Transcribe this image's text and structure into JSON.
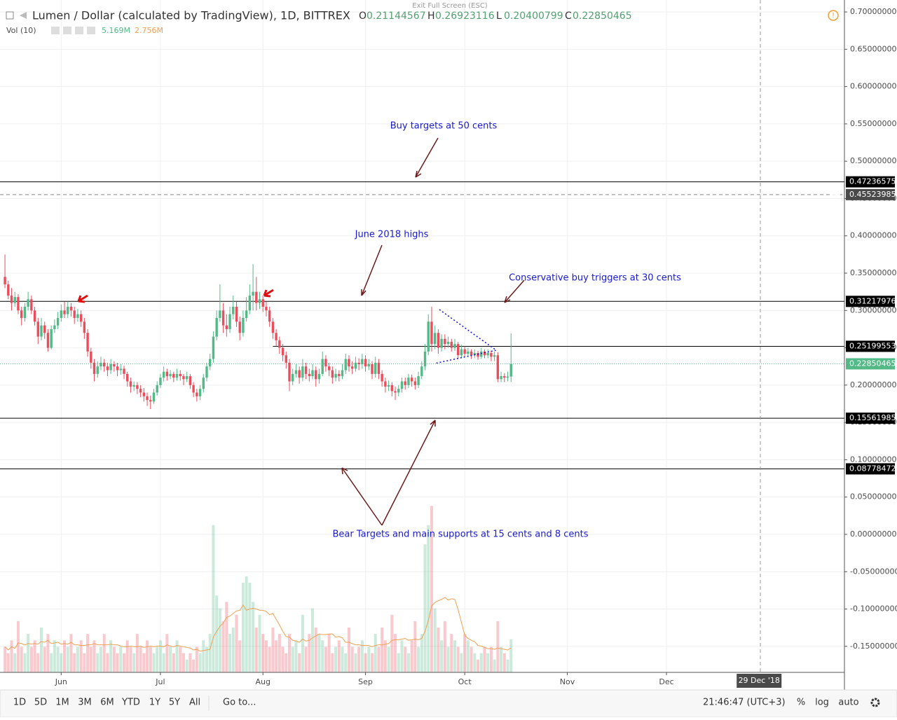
{
  "chart_data": {
    "type": "candlestick",
    "title": "Lumen / Dollar (calculated by TradingView), 1D, BITTREX",
    "ohlc_names": [
      "O",
      "H",
      "L",
      "C"
    ],
    "volume_title": "Vol (10)",
    "volume_label": "5.169M",
    "volume_ma_label": "2.756M",
    "up_color": "#53b987",
    "down_color": "#eb4d5c",
    "volume_ma_color": "#f0a050",
    "candles": [
      [
        0.345,
        0.375,
        0.33,
        0.335
      ],
      [
        0.335,
        0.34,
        0.315,
        0.32
      ],
      [
        0.32,
        0.33,
        0.3,
        0.31
      ],
      [
        0.31,
        0.325,
        0.305,
        0.318
      ],
      [
        0.318,
        0.322,
        0.295,
        0.3
      ],
      [
        0.3,
        0.305,
        0.28,
        0.29
      ],
      [
        0.29,
        0.31,
        0.285,
        0.305
      ],
      [
        0.305,
        0.325,
        0.3,
        0.315
      ],
      [
        0.315,
        0.32,
        0.295,
        0.3
      ],
      [
        0.3,
        0.305,
        0.28,
        0.285
      ],
      [
        0.285,
        0.29,
        0.255,
        0.265
      ],
      [
        0.265,
        0.29,
        0.26,
        0.28
      ],
      [
        0.28,
        0.285,
        0.262,
        0.27
      ],
      [
        0.27,
        0.275,
        0.245,
        0.25
      ],
      [
        0.25,
        0.28,
        0.248,
        0.275
      ],
      [
        0.275,
        0.288,
        0.27,
        0.28
      ],
      [
        0.28,
        0.298,
        0.275,
        0.29
      ],
      [
        0.29,
        0.308,
        0.285,
        0.3
      ],
      [
        0.3,
        0.312,
        0.29,
        0.295
      ],
      [
        0.295,
        0.312,
        0.29,
        0.305
      ],
      [
        0.305,
        0.31,
        0.292,
        0.3
      ],
      [
        0.3,
        0.305,
        0.282,
        0.29
      ],
      [
        0.29,
        0.302,
        0.285,
        0.295
      ],
      [
        0.295,
        0.3,
        0.278,
        0.285
      ],
      [
        0.285,
        0.29,
        0.262,
        0.27
      ],
      [
        0.27,
        0.275,
        0.238,
        0.245
      ],
      [
        0.245,
        0.25,
        0.222,
        0.23
      ],
      [
        0.23,
        0.235,
        0.205,
        0.215
      ],
      [
        0.215,
        0.232,
        0.21,
        0.225
      ],
      [
        0.225,
        0.238,
        0.22,
        0.23
      ],
      [
        0.23,
        0.235,
        0.218,
        0.225
      ],
      [
        0.225,
        0.23,
        0.212,
        0.22
      ],
      [
        0.22,
        0.235,
        0.215,
        0.228
      ],
      [
        0.228,
        0.232,
        0.218,
        0.225
      ],
      [
        0.225,
        0.23,
        0.212,
        0.22
      ],
      [
        0.22,
        0.228,
        0.214,
        0.222
      ],
      [
        0.222,
        0.226,
        0.208,
        0.215
      ],
      [
        0.215,
        0.218,
        0.198,
        0.205
      ],
      [
        0.205,
        0.21,
        0.19,
        0.198
      ],
      [
        0.198,
        0.205,
        0.192,
        0.2
      ],
      [
        0.2,
        0.204,
        0.188,
        0.195
      ],
      [
        0.195,
        0.2,
        0.184,
        0.19
      ],
      [
        0.19,
        0.196,
        0.178,
        0.185
      ],
      [
        0.185,
        0.19,
        0.172,
        0.18
      ],
      [
        0.18,
        0.186,
        0.168,
        0.178
      ],
      [
        0.178,
        0.195,
        0.175,
        0.19
      ],
      [
        0.19,
        0.205,
        0.186,
        0.2
      ],
      [
        0.2,
        0.215,
        0.196,
        0.21
      ],
      [
        0.21,
        0.225,
        0.205,
        0.218
      ],
      [
        0.218,
        0.222,
        0.206,
        0.212
      ],
      [
        0.212,
        0.22,
        0.208,
        0.215
      ],
      [
        0.215,
        0.218,
        0.204,
        0.21
      ],
      [
        0.21,
        0.222,
        0.206,
        0.215
      ],
      [
        0.215,
        0.22,
        0.206,
        0.212
      ],
      [
        0.212,
        0.215,
        0.2,
        0.208
      ],
      [
        0.208,
        0.218,
        0.204,
        0.212
      ],
      [
        0.212,
        0.215,
        0.195,
        0.2
      ],
      [
        0.2,
        0.204,
        0.184,
        0.19
      ],
      [
        0.19,
        0.195,
        0.178,
        0.185
      ],
      [
        0.185,
        0.2,
        0.18,
        0.195
      ],
      [
        0.195,
        0.215,
        0.19,
        0.21
      ],
      [
        0.21,
        0.23,
        0.205,
        0.225
      ],
      [
        0.225,
        0.242,
        0.22,
        0.235
      ],
      [
        0.235,
        0.272,
        0.23,
        0.265
      ],
      [
        0.265,
        0.3,
        0.26,
        0.29
      ],
      [
        0.29,
        0.335,
        0.285,
        0.3
      ],
      [
        0.3,
        0.31,
        0.27,
        0.28
      ],
      [
        0.28,
        0.295,
        0.265,
        0.275
      ],
      [
        0.275,
        0.305,
        0.27,
        0.295
      ],
      [
        0.295,
        0.32,
        0.288,
        0.305
      ],
      [
        0.305,
        0.312,
        0.278,
        0.285
      ],
      [
        0.285,
        0.292,
        0.26,
        0.27
      ],
      [
        0.27,
        0.3,
        0.265,
        0.29
      ],
      [
        0.29,
        0.318,
        0.285,
        0.3
      ],
      [
        0.3,
        0.335,
        0.295,
        0.32
      ],
      [
        0.32,
        0.362,
        0.3,
        0.325
      ],
      [
        0.325,
        0.345,
        0.3,
        0.31
      ],
      [
        0.31,
        0.325,
        0.302,
        0.315
      ],
      [
        0.315,
        0.32,
        0.298,
        0.305
      ],
      [
        0.305,
        0.312,
        0.292,
        0.3
      ],
      [
        0.3,
        0.305,
        0.278,
        0.285
      ],
      [
        0.285,
        0.29,
        0.262,
        0.27
      ],
      [
        0.27,
        0.275,
        0.252,
        0.26
      ],
      [
        0.26,
        0.265,
        0.242,
        0.25
      ],
      [
        0.25,
        0.255,
        0.232,
        0.24
      ],
      [
        0.24,
        0.245,
        0.222,
        0.23
      ],
      [
        0.23,
        0.235,
        0.192,
        0.205
      ],
      [
        0.205,
        0.222,
        0.2,
        0.215
      ],
      [
        0.215,
        0.228,
        0.21,
        0.22
      ],
      [
        0.22,
        0.225,
        0.202,
        0.21
      ],
      [
        0.21,
        0.235,
        0.205,
        0.225
      ],
      [
        0.225,
        0.23,
        0.208,
        0.215
      ],
      [
        0.215,
        0.222,
        0.205,
        0.212
      ],
      [
        0.212,
        0.228,
        0.208,
        0.22
      ],
      [
        0.22,
        0.225,
        0.198,
        0.208
      ],
      [
        0.208,
        0.222,
        0.202,
        0.215
      ],
      [
        0.215,
        0.245,
        0.212,
        0.235
      ],
      [
        0.235,
        0.24,
        0.218,
        0.225
      ],
      [
        0.225,
        0.23,
        0.212,
        0.22
      ],
      [
        0.22,
        0.225,
        0.202,
        0.21
      ],
      [
        0.21,
        0.222,
        0.205,
        0.215
      ],
      [
        0.215,
        0.22,
        0.205,
        0.212
      ],
      [
        0.212,
        0.228,
        0.208,
        0.22
      ],
      [
        0.22,
        0.242,
        0.215,
        0.235
      ],
      [
        0.235,
        0.24,
        0.218,
        0.225
      ],
      [
        0.225,
        0.232,
        0.215,
        0.222
      ],
      [
        0.222,
        0.238,
        0.218,
        0.23
      ],
      [
        0.23,
        0.236,
        0.22,
        0.228
      ],
      [
        0.228,
        0.242,
        0.222,
        0.235
      ],
      [
        0.235,
        0.24,
        0.218,
        0.225
      ],
      [
        0.225,
        0.235,
        0.22,
        0.228
      ],
      [
        0.228,
        0.232,
        0.208,
        0.215
      ],
      [
        0.215,
        0.238,
        0.21,
        0.23
      ],
      [
        0.23,
        0.235,
        0.208,
        0.215
      ],
      [
        0.215,
        0.22,
        0.198,
        0.205
      ],
      [
        0.205,
        0.21,
        0.19,
        0.198
      ],
      [
        0.198,
        0.206,
        0.192,
        0.2
      ],
      [
        0.2,
        0.204,
        0.185,
        0.192
      ],
      [
        0.192,
        0.198,
        0.18,
        0.19
      ],
      [
        0.19,
        0.2,
        0.185,
        0.195
      ],
      [
        0.195,
        0.21,
        0.19,
        0.205
      ],
      [
        0.205,
        0.21,
        0.194,
        0.2
      ],
      [
        0.2,
        0.215,
        0.196,
        0.21
      ],
      [
        0.21,
        0.214,
        0.198,
        0.205
      ],
      [
        0.205,
        0.21,
        0.194,
        0.2
      ],
      [
        0.2,
        0.218,
        0.196,
        0.212
      ],
      [
        0.212,
        0.232,
        0.208,
        0.225
      ],
      [
        0.225,
        0.255,
        0.22,
        0.245
      ],
      [
        0.245,
        0.295,
        0.24,
        0.285
      ],
      [
        0.285,
        0.305,
        0.245,
        0.255
      ],
      [
        0.255,
        0.28,
        0.248,
        0.27
      ],
      [
        0.27,
        0.275,
        0.242,
        0.25
      ],
      [
        0.25,
        0.268,
        0.245,
        0.262
      ],
      [
        0.262,
        0.268,
        0.248,
        0.255
      ],
      [
        0.255,
        0.265,
        0.25,
        0.258
      ],
      [
        0.258,
        0.262,
        0.245,
        0.25
      ],
      [
        0.25,
        0.262,
        0.246,
        0.255
      ],
      [
        0.255,
        0.258,
        0.235,
        0.24
      ],
      [
        0.24,
        0.254,
        0.236,
        0.248
      ],
      [
        0.248,
        0.252,
        0.238,
        0.242
      ],
      [
        0.242,
        0.25,
        0.238,
        0.245
      ],
      [
        0.245,
        0.248,
        0.235,
        0.24
      ],
      [
        0.24,
        0.248,
        0.236,
        0.243
      ],
      [
        0.243,
        0.246,
        0.234,
        0.238
      ],
      [
        0.238,
        0.25,
        0.235,
        0.245
      ],
      [
        0.245,
        0.248,
        0.236,
        0.24
      ],
      [
        0.24,
        0.248,
        0.236,
        0.243
      ],
      [
        0.243,
        0.246,
        0.232,
        0.238
      ],
      [
        0.238,
        0.245,
        0.232,
        0.24
      ],
      [
        0.24,
        0.244,
        0.204,
        0.208
      ],
      [
        0.208,
        0.218,
        0.204,
        0.212
      ],
      [
        0.212,
        0.216,
        0.204,
        0.21
      ],
      [
        0.21,
        0.218,
        0.205,
        0.2114
      ],
      [
        0.21144567,
        0.26923116,
        0.20400799,
        0.22850465
      ]
    ],
    "volume": [
      4,
      3,
      5,
      3,
      8,
      4,
      3,
      6,
      4,
      5,
      3,
      7,
      4,
      6,
      3,
      5,
      4,
      3,
      5,
      4,
      6,
      3,
      4,
      5,
      3,
      6,
      4,
      5,
      3,
      4,
      6,
      3,
      5,
      4,
      3,
      4,
      3,
      5,
      4,
      3,
      6,
      4,
      3,
      5,
      4,
      3,
      4,
      5,
      3,
      6,
      4,
      3,
      5,
      4,
      3,
      2,
      3,
      2,
      4,
      3,
      5,
      4,
      6,
      23,
      12,
      10,
      8,
      11,
      6,
      7,
      9,
      5,
      14,
      15,
      14,
      11,
      7,
      9,
      6,
      5,
      4,
      7,
      5,
      6,
      4,
      3,
      6,
      4,
      5,
      3,
      9,
      4,
      6,
      10,
      7,
      6,
      5,
      4,
      6,
      3,
      4,
      5,
      4,
      3,
      7,
      4,
      3,
      4,
      5,
      3,
      4,
      3,
      6,
      4,
      7,
      5,
      4,
      9,
      6,
      3,
      5,
      4,
      3,
      5,
      8,
      4,
      6,
      20,
      23,
      26,
      10,
      7,
      5,
      8,
      4,
      6,
      5,
      4,
      3,
      6,
      5,
      4,
      3,
      2,
      3,
      4,
      3,
      4,
      2,
      8,
      4,
      3,
      2,
      5.169
    ],
    "volume_lim": [
      0,
      105
    ],
    "xlim": [
      -1.5,
      253.8
    ],
    "xticks": [
      {
        "value": 17,
        "label": "Jun"
      },
      {
        "value": 47,
        "label": "Jul"
      },
      {
        "value": 78,
        "label": "Aug"
      },
      {
        "value": 109,
        "label": "Sep"
      },
      {
        "value": 139,
        "label": "Oct"
      },
      {
        "value": 170,
        "label": "Nov"
      },
      {
        "value": 200,
        "label": "Dec"
      }
    ],
    "crosshair_x": {
      "value": 228,
      "label": "29 Dec '18"
    },
    "crosshair_y": 0.45523985,
    "ylim": [
      -0.1849,
      0.716
    ],
    "yticks": [
      {
        "value": 0.7,
        "label": "0.70000000"
      },
      {
        "value": 0.65,
        "label": "0.65000000"
      },
      {
        "value": 0.6,
        "label": "0.60000000"
      },
      {
        "value": 0.55,
        "label": "0.55000000"
      },
      {
        "value": 0.5,
        "label": "0.50000000"
      },
      {
        "value": 0.45,
        "label": "0.45000000"
      },
      {
        "value": 0.4,
        "label": "0.40000000"
      },
      {
        "value": 0.35,
        "label": "0.35000000"
      },
      {
        "value": 0.3,
        "label": "0.30000000"
      },
      {
        "value": 0.25,
        "label": "0.25000000"
      },
      {
        "value": 0.2,
        "label": "0.20000000"
      },
      {
        "value": 0.15,
        "label": "0.15000000"
      },
      {
        "value": 0.1,
        "label": "0.10000000"
      },
      {
        "value": 0.05,
        "label": "0.05000000"
      },
      {
        "value": 0,
        "label": "0.00000000"
      },
      {
        "value": -0.05,
        "label": "-0.05000000"
      },
      {
        "value": -0.1,
        "label": "-0.10000000"
      },
      {
        "value": -0.15,
        "label": "-0.15000000"
      }
    ],
    "levels": [
      0.47236575,
      0.31217976,
      0.25199553,
      0.15561985,
      0.08778472
    ],
    "annotations": [
      "Buy targets at 50 cents",
      "June 2018 highs",
      "Conservative buy triggers at 30 cents",
      "Bear Targets and main supports at 15 cents and 8 cents"
    ],
    "grid": true
  },
  "ui": {
    "exit_fullscreen": "Exit Full Screen (ESC)",
    "ranges": [
      "1D",
      "5D",
      "1M",
      "3M",
      "6M",
      "YTD",
      "1Y",
      "5Y",
      "All"
    ],
    "goto": "Go to...",
    "clock": "21:46:47 (UTC+3)",
    "options": [
      "%",
      "log",
      "auto"
    ]
  }
}
